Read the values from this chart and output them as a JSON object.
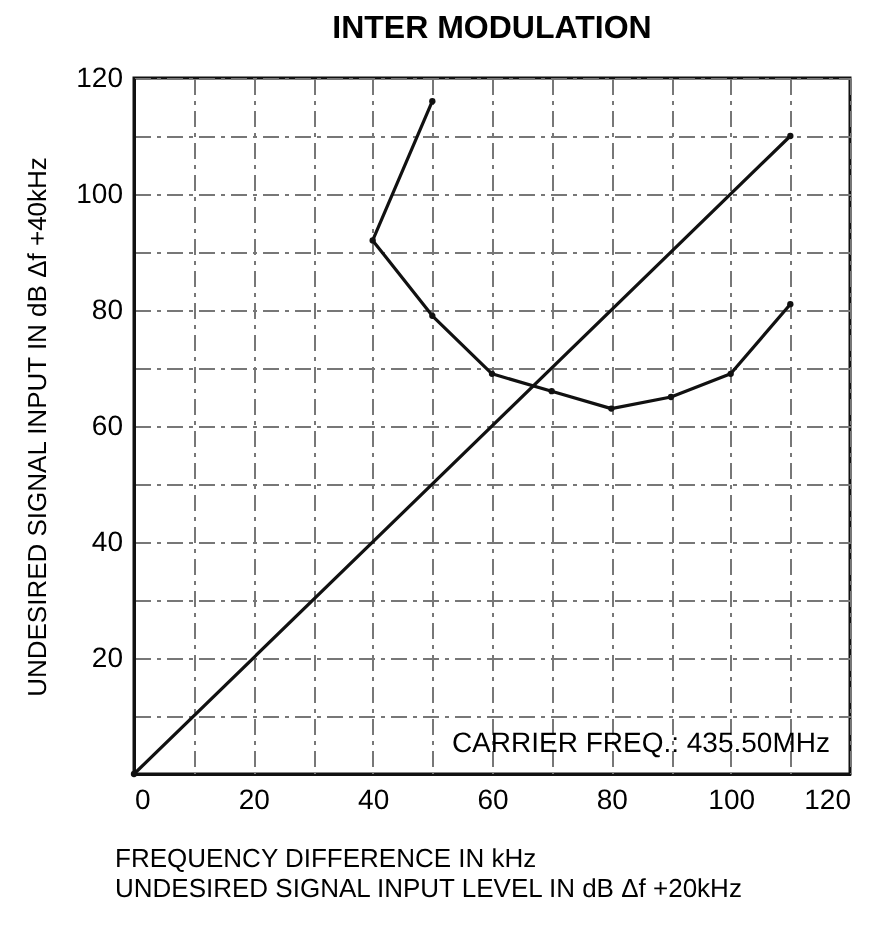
{
  "chart_data": {
    "type": "line",
    "title": "INTER MODULATION",
    "xlabel": "FREQUENCY DIFFERENCE IN kHz\nUNDESIRED SIGNAL INPUT LEVEL IN dB Δf +20kHz",
    "ylabel": "UNDESIRED SIGNAL INPUT IN dB Δf +40kHz",
    "annotations": [
      "CARRIER FREQ.: 435.50MHz"
    ],
    "series": [
      {
        "color": "#111111",
        "x": [
          50,
          40,
          50,
          60,
          70,
          80,
          90,
          100,
          110
        ],
        "values": [
          116,
          92,
          79,
          69,
          66,
          63,
          65,
          69,
          81
        ]
      },
      {
        "color": "#111111",
        "x": [
          0,
          110
        ],
        "values": [
          0,
          110
        ]
      }
    ],
    "xlim": [
      0,
      120
    ],
    "ylim": [
      0,
      120
    ],
    "xticks": [
      0,
      {
        "value": 10,
        "label": null
      },
      20,
      {
        "value": 30,
        "label": null
      },
      40,
      {
        "value": 50,
        "label": null
      },
      60,
      {
        "value": 70,
        "label": null
      },
      80,
      {
        "value": 90,
        "label": null
      },
      100,
      {
        "value": 110,
        "label": null
      },
      120
    ],
    "yticks": [
      {
        "value": 10,
        "label": null
      },
      20,
      {
        "value": 30,
        "label": null
      },
      40,
      {
        "value": 50,
        "label": null
      },
      60,
      {
        "value": 70,
        "label": null
      },
      80,
      {
        "value": 90,
        "label": null
      },
      100,
      {
        "value": 110,
        "label": null
      },
      120
    ],
    "grid": true,
    "marker": "circle",
    "line_style": "solid"
  }
}
